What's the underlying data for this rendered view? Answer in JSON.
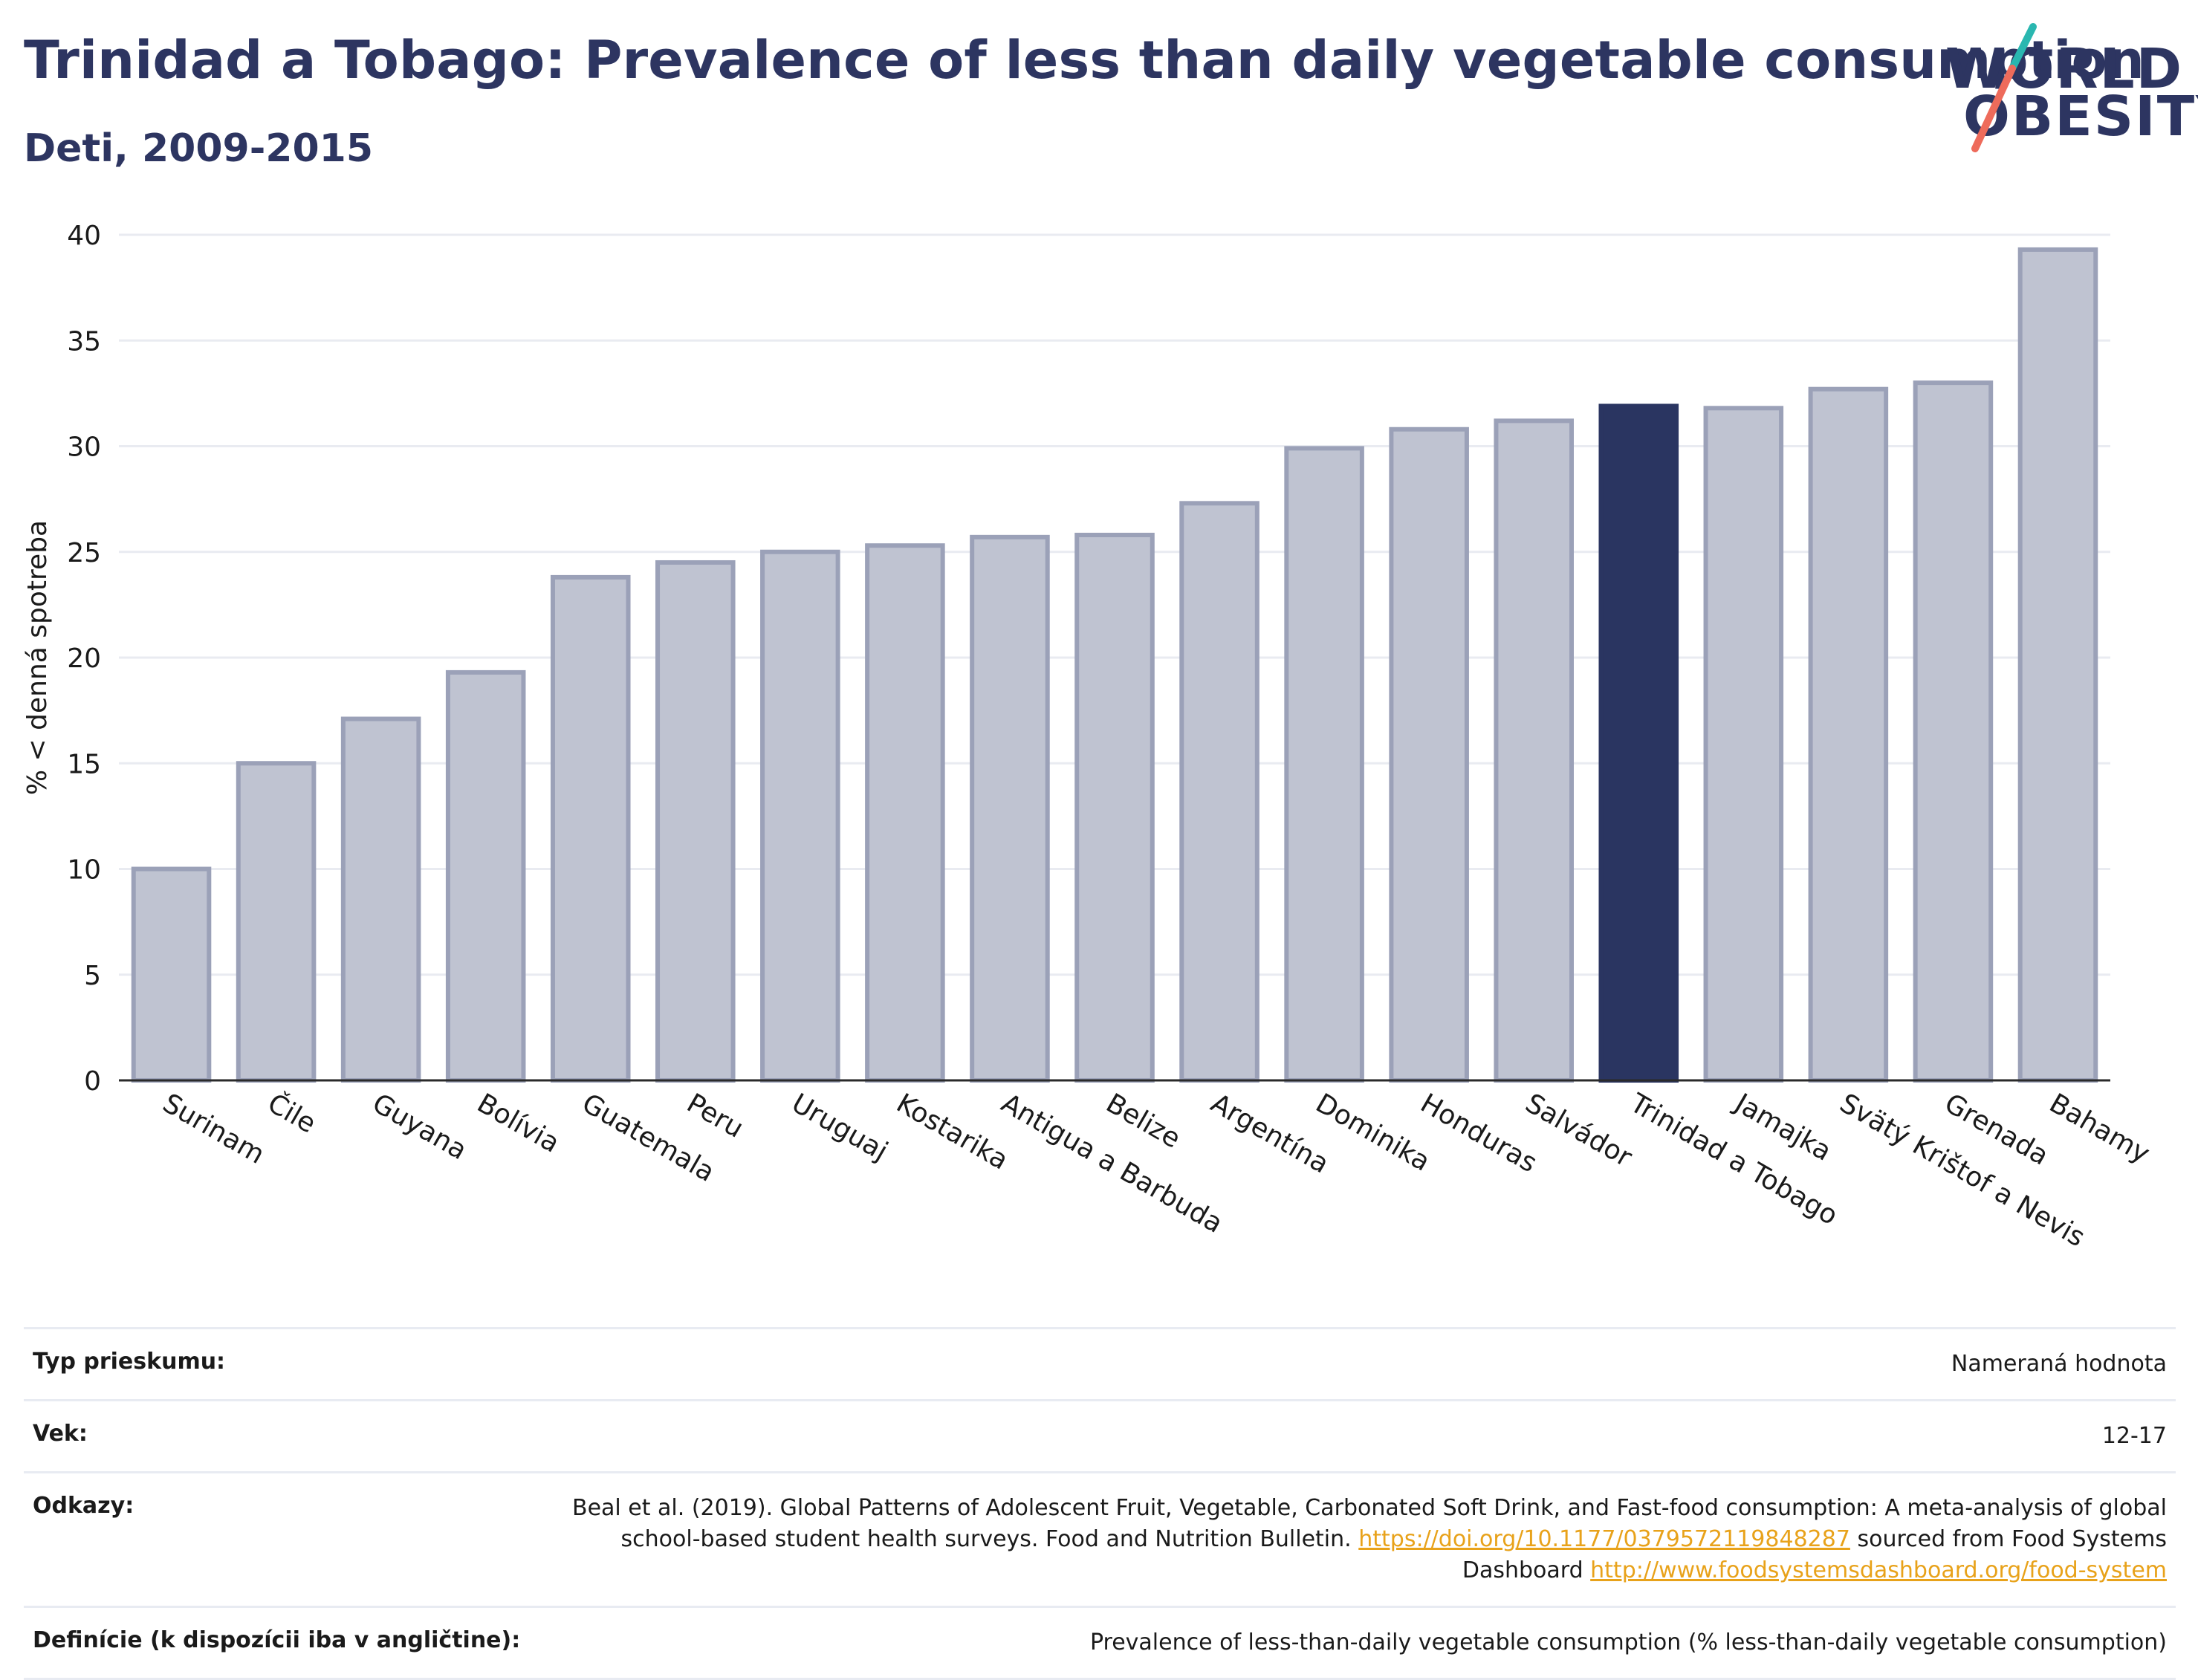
{
  "header": {
    "title": "Trinidad a Tobago: Prevalence of less than daily vegetable consumption",
    "subtitle": "Deti, 2009-2015"
  },
  "logo": {
    "line1": "WORLD",
    "line2": "OBESITY"
  },
  "colors": {
    "highlight": "#2a3561",
    "bar_fill": "#bfc3d1",
    "bar_stroke": "#9ba1b8",
    "text": "#1a1a1a",
    "grid": "#e9ebf1",
    "logo_teal": "#2ab7b0",
    "logo_coral": "#ee6b5b"
  },
  "chart_data": {
    "type": "bar",
    "ylabel": "% < denná spotreba",
    "ylim": [
      0,
      40
    ],
    "yticks": [
      0,
      5,
      10,
      15,
      20,
      25,
      30,
      35,
      40
    ],
    "grid": true,
    "highlight_category": "Trinidad a Tobago",
    "categories": [
      "Surinam",
      "Čile",
      "Guyana",
      "Bolívia",
      "Guatemala",
      "Peru",
      "Uruguaj",
      "Kostarika",
      "Antigua a Barbuda",
      "Belize",
      "Argentína",
      "Dominika",
      "Honduras",
      "Salvádor",
      "Trinidad a Tobago",
      "Jamajka",
      "Svätý Krištof a Nevis",
      "Grenada",
      "Bahamy"
    ],
    "values": [
      10.0,
      15.0,
      17.1,
      19.3,
      23.8,
      24.5,
      25.0,
      25.3,
      25.7,
      25.8,
      27.3,
      29.9,
      30.8,
      31.2,
      31.9,
      31.8,
      32.7,
      33.0,
      39.3
    ]
  },
  "info": {
    "rows": [
      {
        "label": "Typ prieskumu:",
        "value": "Nameraná hodnota"
      },
      {
        "label": "Vek:",
        "value": "12-17"
      },
      {
        "label": "Odkazy:",
        "value": "Beal et al. (2019). Global Patterns of Adolescent Fruit, Vegetable, Carbonated Soft Drink, and Fast-food consumption: A meta-analysis of global school-based student health surveys. Food and Nutrition Bulletin.",
        "link1": "https://doi.org/10.1177/0379572119848287",
        "mid": " sourced from Food Systems Dashboard ",
        "link2": "http://www.foodsystemsdashboard.org/food-system"
      },
      {
        "label": "Definície (k dispozícii iba v angličtine):",
        "value": "Prevalence of less-than-daily vegetable consumption (% less-than-daily vegetable consumption)"
      }
    ]
  }
}
